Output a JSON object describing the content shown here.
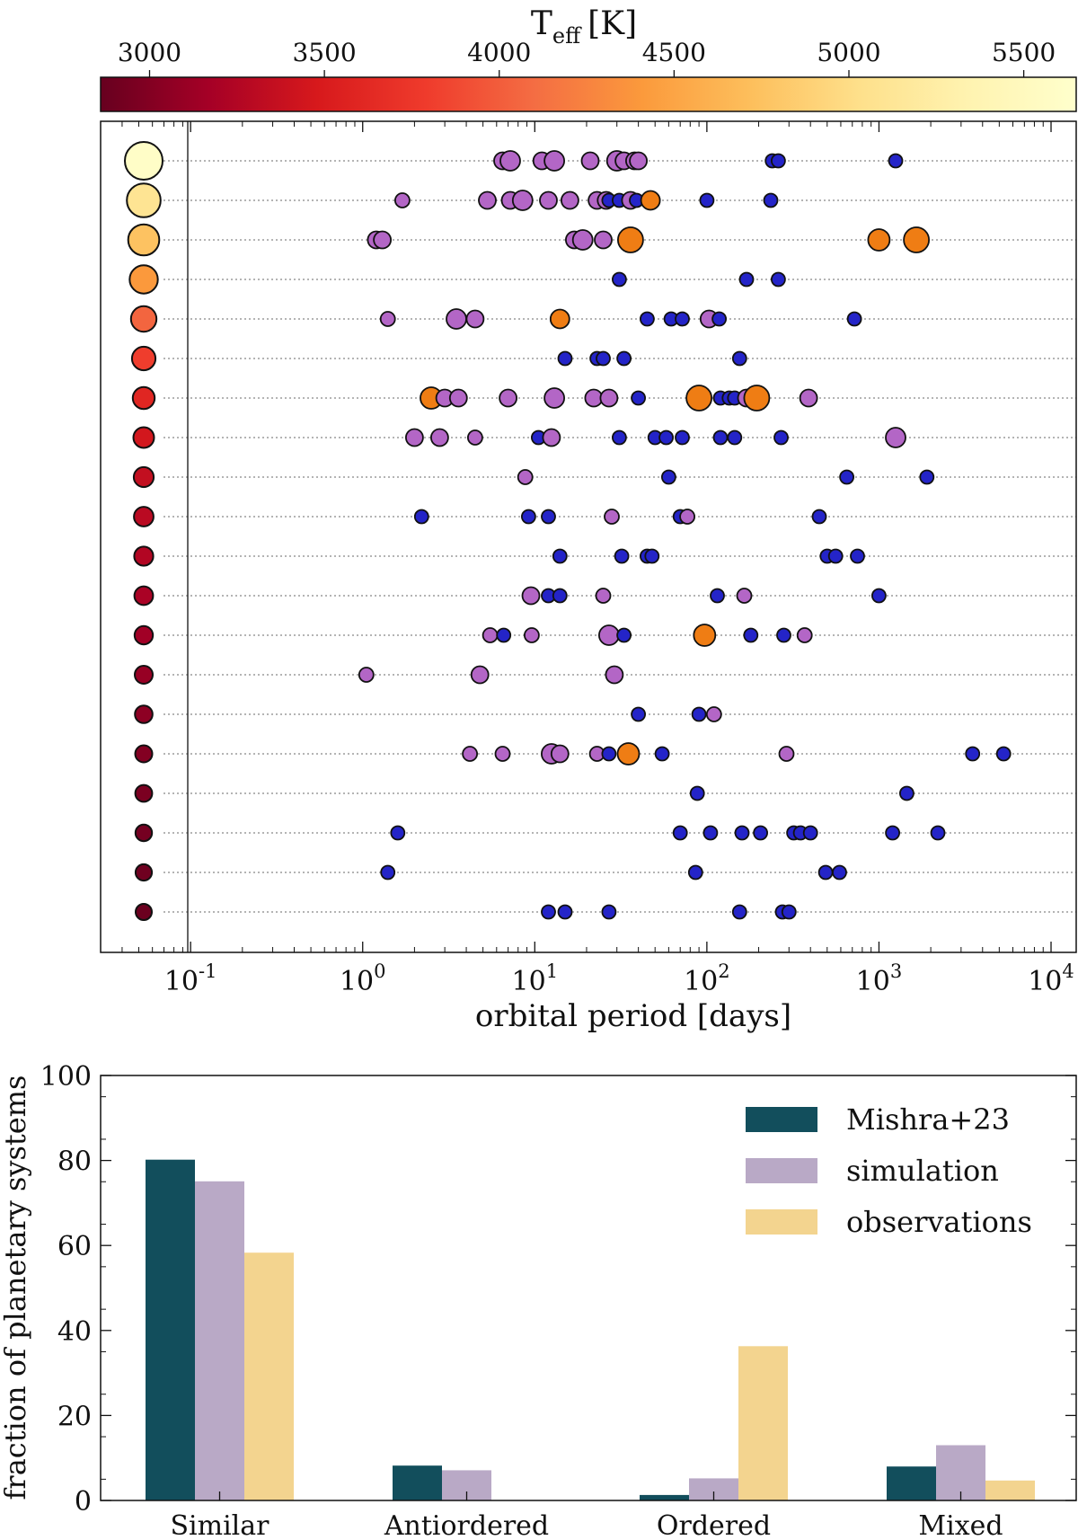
{
  "chart_data": [
    {
      "type": "scatter",
      "title": "",
      "xlabel": "orbital period [days]",
      "ylabel": "",
      "xscale": "log",
      "xlim": [
        0.03,
        14000
      ],
      "x_ticks": [
        {
          "value": 0.1,
          "base": "10",
          "exp": "-1"
        },
        {
          "value": 1,
          "base": "10",
          "exp": "0"
        },
        {
          "value": 10,
          "base": "10",
          "exp": "1"
        },
        {
          "value": 100,
          "base": "10",
          "exp": "2"
        },
        {
          "value": 1000,
          "base": "10",
          "exp": "3"
        },
        {
          "value": 10000,
          "base": "10",
          "exp": "4"
        }
      ],
      "colorbar": {
        "label_main": "T",
        "label_sub": "eff",
        "label_unit": "[K]",
        "range": [
          2860,
          5650
        ],
        "ticks": [
          "3000",
          "3500",
          "4000",
          "4500",
          "5000",
          "5500"
        ],
        "colormap": [
          "#67001f",
          "#a50026",
          "#d7191c",
          "#ef3b2c",
          "#f46d43",
          "#fb9a3c",
          "#fdbf5c",
          "#fee08b",
          "#fff3b0",
          "#ffffcc"
        ]
      },
      "marker_colors": {
        "purple": "#b366c6",
        "orange": "#ef7d14",
        "blue": "#2424c8",
        "outline": "#111111"
      },
      "marker_names": {
        "purple": "purple-planet-marker",
        "orange": "orange-planet-marker",
        "blue": "blue-planet-marker"
      },
      "systems": [
        {
          "teff": 5600,
          "planets": [
            [
              6.5,
              "p",
              1
            ],
            [
              7.2,
              "p",
              2
            ],
            [
              11,
              "p",
              1
            ],
            [
              13,
              "p",
              2
            ],
            [
              21,
              "p",
              1
            ],
            [
              30,
              "p",
              2
            ],
            [
              33,
              "p",
              1
            ],
            [
              38,
              "p",
              1
            ],
            [
              40,
              "p",
              1
            ],
            [
              240,
              "b",
              0
            ],
            [
              260,
              "b",
              0
            ],
            [
              1250,
              "b",
              0
            ]
          ]
        },
        {
          "teff": 5100,
          "planets": [
            [
              1.7,
              "p",
              0
            ],
            [
              5.3,
              "p",
              1
            ],
            [
              7.2,
              "p",
              1
            ],
            [
              8.5,
              "p",
              2
            ],
            [
              12,
              "p",
              1
            ],
            [
              16,
              "p",
              1
            ],
            [
              23,
              "p",
              1
            ],
            [
              26,
              "p",
              1
            ],
            [
              27,
              "b",
              0
            ],
            [
              31,
              "b",
              0
            ],
            [
              36,
              "p",
              1
            ],
            [
              39,
              "b",
              0
            ],
            [
              47,
              "o",
              1
            ],
            [
              100,
              "b",
              0
            ],
            [
              235,
              "b",
              0
            ]
          ]
        },
        {
          "teff": 4750,
          "planets": [
            [
              1.2,
              "p",
              1
            ],
            [
              1.3,
              "p",
              1
            ],
            [
              17,
              "p",
              1
            ],
            [
              19,
              "p",
              2
            ],
            [
              25,
              "p",
              1
            ],
            [
              36,
              "o",
              3
            ],
            [
              1000,
              "o",
              2
            ],
            [
              1650,
              "o",
              3
            ]
          ]
        },
        {
          "teff": 4400,
          "planets": [
            [
              31,
              "b",
              0
            ],
            [
              170,
              "b",
              0
            ],
            [
              260,
              "b",
              0
            ]
          ]
        },
        {
          "teff": 4050,
          "planets": [
            [
              1.4,
              "p",
              0
            ],
            [
              3.5,
              "p",
              2
            ],
            [
              4.5,
              "p",
              1
            ],
            [
              14,
              "o",
              1
            ],
            [
              45,
              "b",
              0
            ],
            [
              62,
              "b",
              0
            ],
            [
              72,
              "b",
              0
            ],
            [
              103,
              "p",
              1
            ],
            [
              118,
              "b",
              0
            ],
            [
              720,
              "b",
              0
            ]
          ]
        },
        {
          "teff": 3800,
          "planets": [
            [
              15,
              "b",
              0
            ],
            [
              23,
              "b",
              0
            ],
            [
              25,
              "b",
              0
            ],
            [
              33,
              "b",
              0
            ],
            [
              155,
              "b",
              0
            ]
          ]
        },
        {
          "teff": 3600,
          "planets": [
            [
              2.5,
              "o",
              2
            ],
            [
              3,
              "p",
              1
            ],
            [
              3.6,
              "p",
              1
            ],
            [
              7,
              "p",
              1
            ],
            [
              13,
              "p",
              2
            ],
            [
              22,
              "p",
              1
            ],
            [
              27,
              "p",
              1
            ],
            [
              40,
              "b",
              0
            ],
            [
              90,
              "o",
              3
            ],
            [
              120,
              "b",
              0
            ],
            [
              135,
              "b",
              0
            ],
            [
              145,
              "b",
              0
            ],
            [
              170,
              "p",
              1
            ],
            [
              195,
              "o",
              3
            ],
            [
              390,
              "p",
              1
            ]
          ]
        },
        {
          "teff": 3450,
          "planets": [
            [
              2,
              "p",
              1
            ],
            [
              2.8,
              "p",
              1
            ],
            [
              4.5,
              "p",
              0
            ],
            [
              10.5,
              "b",
              0
            ],
            [
              12.5,
              "p",
              1
            ],
            [
              31,
              "b",
              0
            ],
            [
              50,
              "b",
              0
            ],
            [
              58,
              "b",
              0
            ],
            [
              72,
              "b",
              0
            ],
            [
              120,
              "b",
              0
            ],
            [
              145,
              "b",
              0
            ],
            [
              270,
              "b",
              0
            ],
            [
              1250,
              "p",
              2
            ]
          ]
        },
        {
          "teff": 3350,
          "planets": [
            [
              8.8,
              "p",
              0
            ],
            [
              60,
              "b",
              0
            ],
            [
              650,
              "b",
              0
            ],
            [
              1900,
              "b",
              0
            ]
          ]
        },
        {
          "teff": 3300,
          "planets": [
            [
              2.2,
              "b",
              0
            ],
            [
              9.2,
              "b",
              0
            ],
            [
              12,
              "b",
              0
            ],
            [
              28,
              "p",
              0
            ],
            [
              70,
              "b",
              0
            ],
            [
              77,
              "p",
              0
            ],
            [
              450,
              "b",
              0
            ]
          ]
        },
        {
          "teff": 3250,
          "planets": [
            [
              14,
              "b",
              0
            ],
            [
              32,
              "b",
              0
            ],
            [
              45,
              "b",
              0
            ],
            [
              48,
              "b",
              0
            ],
            [
              500,
              "b",
              0
            ],
            [
              560,
              "b",
              0
            ],
            [
              750,
              "b",
              0
            ]
          ]
        },
        {
          "teff": 3200,
          "planets": [
            [
              9.5,
              "p",
              1
            ],
            [
              12,
              "b",
              0
            ],
            [
              14,
              "b",
              0
            ],
            [
              25,
              "p",
              0
            ],
            [
              115,
              "b",
              0
            ],
            [
              165,
              "p",
              0
            ],
            [
              1000,
              "b",
              0
            ]
          ]
        },
        {
          "teff": 3150,
          "planets": [
            [
              5.5,
              "p",
              0
            ],
            [
              6.6,
              "b",
              0
            ],
            [
              9.6,
              "p",
              0
            ],
            [
              27,
              "p",
              2
            ],
            [
              33,
              "b",
              0
            ],
            [
              97,
              "o",
              2
            ],
            [
              180,
              "b",
              0
            ],
            [
              280,
              "b",
              0
            ],
            [
              370,
              "p",
              0
            ]
          ]
        },
        {
          "teff": 3100,
          "planets": [
            [
              1.05,
              "p",
              0
            ],
            [
              4.8,
              "p",
              1
            ],
            [
              29,
              "p",
              1
            ]
          ]
        },
        {
          "teff": 3050,
          "planets": [
            [
              40,
              "b",
              0
            ],
            [
              90,
              "b",
              0
            ],
            [
              110,
              "p",
              0
            ]
          ]
        },
        {
          "teff": 3000,
          "planets": [
            [
              4.2,
              "p",
              0
            ],
            [
              6.5,
              "p",
              0
            ],
            [
              12.5,
              "p",
              2
            ],
            [
              14,
              "p",
              1
            ],
            [
              23,
              "p",
              0
            ],
            [
              27,
              "b",
              0
            ],
            [
              35,
              "o",
              2
            ],
            [
              55,
              "b",
              0
            ],
            [
              290,
              "p",
              0
            ],
            [
              3500,
              "b",
              0
            ],
            [
              5300,
              "b",
              0
            ]
          ]
        },
        {
          "teff": 2960,
          "planets": [
            [
              88,
              "b",
              0
            ],
            [
              1450,
              "b",
              0
            ]
          ]
        },
        {
          "teff": 2930,
          "planets": [
            [
              1.6,
              "b",
              0
            ],
            [
              70,
              "b",
              0
            ],
            [
              105,
              "b",
              0
            ],
            [
              160,
              "b",
              0
            ],
            [
              205,
              "b",
              0
            ],
            [
              320,
              "b",
              0
            ],
            [
              350,
              "b",
              0
            ],
            [
              400,
              "b",
              0
            ],
            [
              1200,
              "b",
              0
            ],
            [
              2200,
              "b",
              0
            ]
          ]
        },
        {
          "teff": 2900,
          "planets": [
            [
              1.4,
              "b",
              0
            ],
            [
              86,
              "b",
              0
            ],
            [
              490,
              "b",
              0
            ],
            [
              590,
              "b",
              0
            ]
          ]
        },
        {
          "teff": 2880,
          "planets": [
            [
              12,
              "b",
              0
            ],
            [
              15,
              "b",
              0
            ],
            [
              27,
              "b",
              0
            ],
            [
              155,
              "b",
              0
            ],
            [
              275,
              "b",
              0
            ],
            [
              300,
              "b",
              0
            ]
          ]
        }
      ]
    },
    {
      "type": "bar",
      "title": "",
      "xlabel": "",
      "ylabel": "fraction of planetary systems",
      "ylim": [
        0,
        100
      ],
      "yticks": [
        0,
        20,
        40,
        60,
        80,
        100
      ],
      "categories": [
        "Similar",
        "Antiordered",
        "Ordered",
        "Mixed"
      ],
      "legend_position": "top-right",
      "series": [
        {
          "name": "Mishra+23",
          "color": "#124e5c",
          "values": [
            80.2,
            8.2,
            1.3,
            8.0
          ]
        },
        {
          "name": "simulation",
          "color": "#b9a9c6",
          "values": [
            75.1,
            7.1,
            5.2,
            13.0
          ]
        },
        {
          "name": "observations",
          "color": "#f3d48f",
          "values": [
            58.3,
            0,
            36.3,
            4.7
          ]
        }
      ]
    }
  ]
}
